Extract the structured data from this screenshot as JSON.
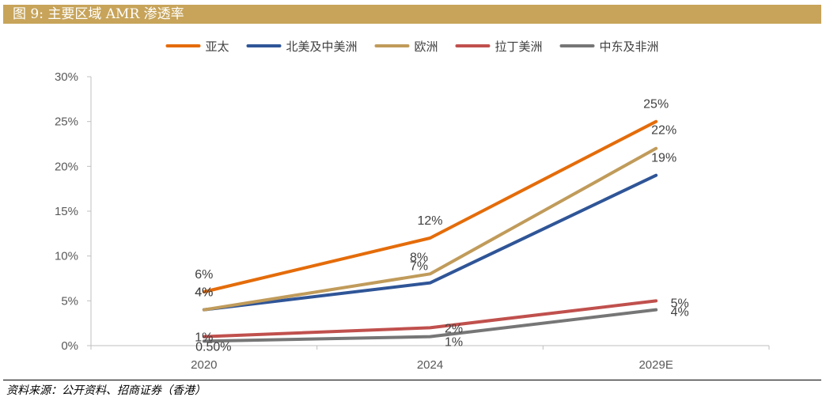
{
  "header": {
    "title": "图 9:  主要区域 AMR 渗透率"
  },
  "source": "资料来源：公开资料、招商证券（香港）",
  "chart_data": {
    "type": "line",
    "categories": [
      "2020",
      "2024",
      "2029E"
    ],
    "ylim": [
      0,
      30
    ],
    "yticks": [
      0,
      5,
      10,
      15,
      20,
      25,
      30
    ],
    "ytick_labels": [
      "0%",
      "5%",
      "10%",
      "15%",
      "20%",
      "25%",
      "30%"
    ],
    "legend_position": "top",
    "series": [
      {
        "name": "亚太",
        "color": "#e46c0a",
        "values": [
          6,
          12,
          25
        ],
        "labels": [
          "6%",
          "12%",
          "25%"
        ]
      },
      {
        "name": "北美及中美洲",
        "color": "#2f5597",
        "values": [
          4,
          7,
          19
        ],
        "labels": [
          "4%",
          "7%",
          "19%"
        ]
      },
      {
        "name": "欧洲",
        "color": "#c09b5a",
        "values": [
          4,
          8,
          22
        ],
        "labels": [
          "4%",
          "8%",
          "22%"
        ]
      },
      {
        "name": "拉丁美洲",
        "color": "#c0504d",
        "values": [
          1,
          2,
          5
        ],
        "labels": [
          "1%",
          "2%",
          "5%"
        ]
      },
      {
        "name": "中东及非洲",
        "color": "#767676",
        "values": [
          0.5,
          1,
          4
        ],
        "labels": [
          "0.50%",
          "1%",
          "4%"
        ]
      }
    ]
  }
}
